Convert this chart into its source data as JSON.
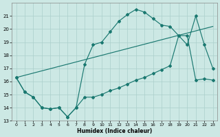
{
  "xlabel": "Humidex (Indice chaleur)",
  "xlim": [
    -0.5,
    23.5
  ],
  "ylim": [
    13,
    22
  ],
  "yticks": [
    13,
    14,
    15,
    16,
    17,
    18,
    19,
    20,
    21
  ],
  "xticks": [
    0,
    1,
    2,
    3,
    4,
    5,
    6,
    7,
    8,
    9,
    10,
    11,
    12,
    13,
    14,
    15,
    16,
    17,
    18,
    19,
    20,
    21,
    22,
    23
  ],
  "background_color": "#cce8e4",
  "grid_color": "#aacfcb",
  "line_color": "#1a7870",
  "curve1_x": [
    0,
    1,
    2,
    3,
    4,
    5,
    6,
    7,
    8,
    9,
    10,
    11,
    12,
    13,
    14,
    15,
    16,
    17,
    18,
    19,
    20,
    21,
    22,
    23
  ],
  "curve1_y": [
    16.3,
    15.2,
    14.8,
    14.0,
    13.9,
    14.0,
    13.3,
    14.0,
    17.3,
    18.8,
    19.0,
    19.8,
    20.6,
    21.1,
    21.5,
    21.3,
    20.8,
    20.3,
    20.2,
    19.5,
    18.8,
    21.0,
    18.8,
    17.0
  ],
  "curve2_x": [
    0,
    23
  ],
  "curve2_y": [
    16.3,
    20.2
  ],
  "curve3_x": [
    0,
    1,
    2,
    3,
    4,
    5,
    6,
    7,
    8,
    9,
    10,
    11,
    12,
    13,
    14,
    15,
    16,
    17,
    18,
    19,
    20,
    21,
    22,
    23
  ],
  "curve3_y": [
    16.3,
    15.2,
    14.8,
    14.0,
    13.9,
    14.0,
    13.3,
    14.0,
    14.8,
    14.8,
    15.0,
    15.3,
    15.5,
    15.8,
    16.1,
    16.3,
    16.6,
    16.9,
    17.2,
    19.5,
    19.5,
    16.1,
    16.2,
    16.1
  ]
}
